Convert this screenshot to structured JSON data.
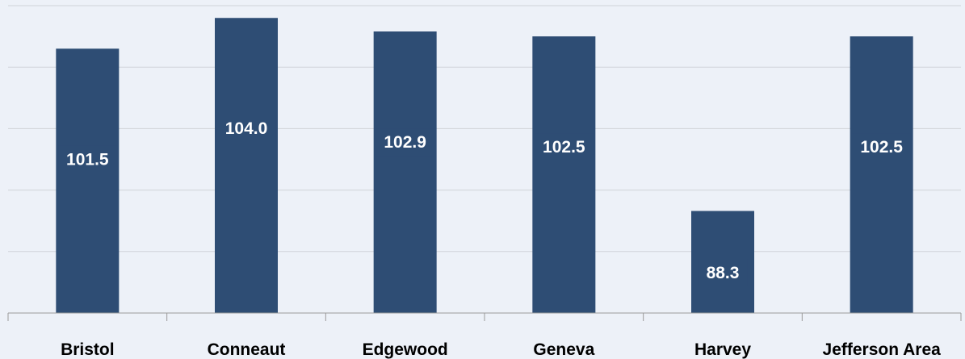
{
  "chart_data": {
    "type": "bar",
    "categories": [
      "Bristol",
      "Conneaut",
      "Edgewood",
      "Geneva",
      "Harvey",
      "Jefferson Area"
    ],
    "values": [
      101.5,
      104.0,
      102.9,
      102.5,
      88.3,
      102.5
    ],
    "data_labels": [
      "101.5",
      "104.0",
      "102.9",
      "102.5",
      "88.3",
      "102.5"
    ],
    "title": "",
    "xlabel": "",
    "ylabel": "",
    "ylim": [
      80,
      105
    ],
    "grid": true,
    "legend": "none",
    "colors": {
      "bar": "#2e4d74",
      "background": "#edf1f8",
      "grid": "#d0d3d9",
      "axis": "#9a9a9a",
      "label_text": "#ffffff"
    }
  }
}
